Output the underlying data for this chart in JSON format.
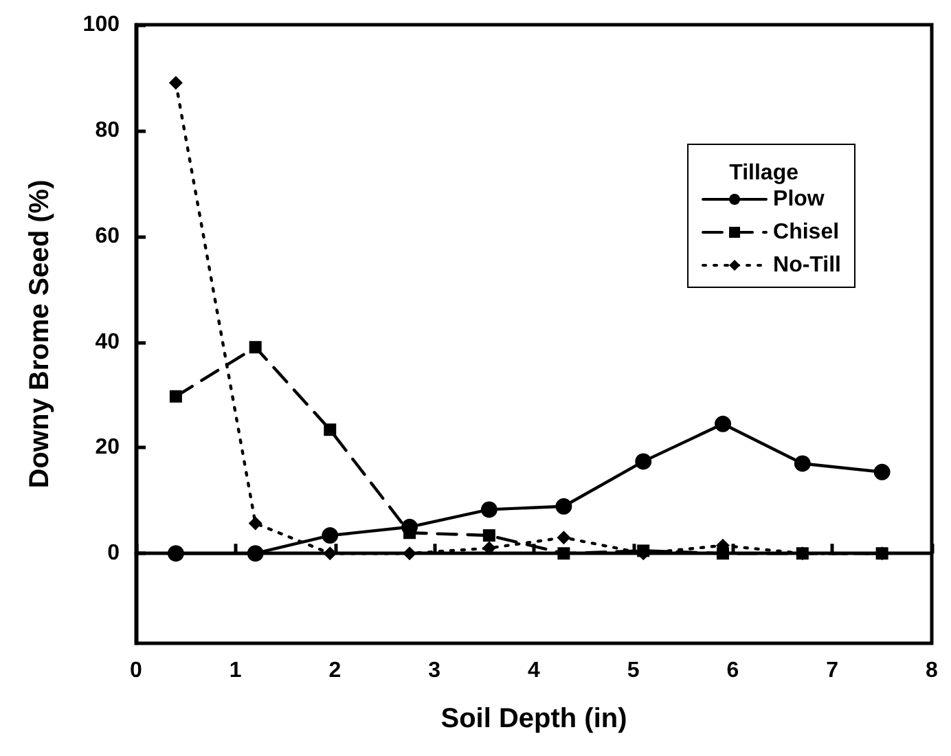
{
  "chart_data": {
    "type": "line",
    "xlabel": "Soil Depth (in)",
    "ylabel": "Downy Brome Seed (%)",
    "legend_title": "Tillage",
    "legend": "top right",
    "x": [
      0.4,
      1.2,
      1.95,
      2.75,
      3.55,
      4.3,
      5.1,
      5.9,
      6.7,
      7.5
    ],
    "xlim": [
      0,
      8
    ],
    "xticks": [
      0,
      1,
      2,
      3,
      4,
      5,
      6,
      7,
      8
    ],
    "ylim": [
      -17,
      100
    ],
    "yticks": [
      0,
      20,
      40,
      60,
      80,
      100
    ],
    "series": [
      {
        "name": "Plow",
        "color": "#000000",
        "marker": "circle",
        "line_style": "solid",
        "values": [
          0,
          0,
          3.4,
          5,
          8.3,
          8.9,
          17.4,
          24.5,
          17,
          15.4
        ]
      },
      {
        "name": "Chisel",
        "color": "#000000",
        "marker": "square",
        "line_style": "dashed",
        "values": [
          29.7,
          39,
          23.4,
          3.9,
          3.4,
          0,
          0.5,
          0,
          0,
          0
        ]
      },
      {
        "name": "No-Till",
        "color": "#000000",
        "marker": "diamond",
        "line_style": "dotted",
        "values": [
          89,
          5.7,
          0,
          0,
          1,
          3,
          0,
          1.5,
          0,
          0
        ]
      }
    ]
  }
}
